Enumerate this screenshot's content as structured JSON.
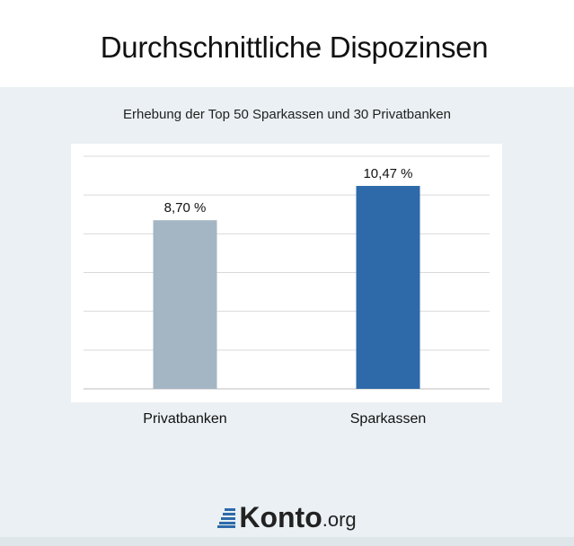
{
  "title": "Durchschnittliche Dispozinsen",
  "subtitle": "Erhebung der Top 50 Sparkassen und 30 Privatbanken",
  "chart_data": {
    "type": "bar",
    "categories": [
      "Privatbanken",
      "Sparkassen"
    ],
    "values": [
      8.7,
      10.47
    ],
    "value_labels": [
      "8,70 %",
      "10,47 %"
    ],
    "colors": [
      "#a4b5c3",
      "#2e6aa9"
    ],
    "title": "Durchschnittliche Dispozinsen",
    "subtitle": "Erhebung der Top 50 Sparkassen und 30 Privatbanken",
    "xlabel": "",
    "ylabel": "",
    "ylim": [
      0,
      12
    ],
    "grid": true,
    "legend": "none"
  },
  "logo": {
    "main": "Konto",
    "tld": ".org",
    "icon": "stacked-bars-logo-icon"
  }
}
